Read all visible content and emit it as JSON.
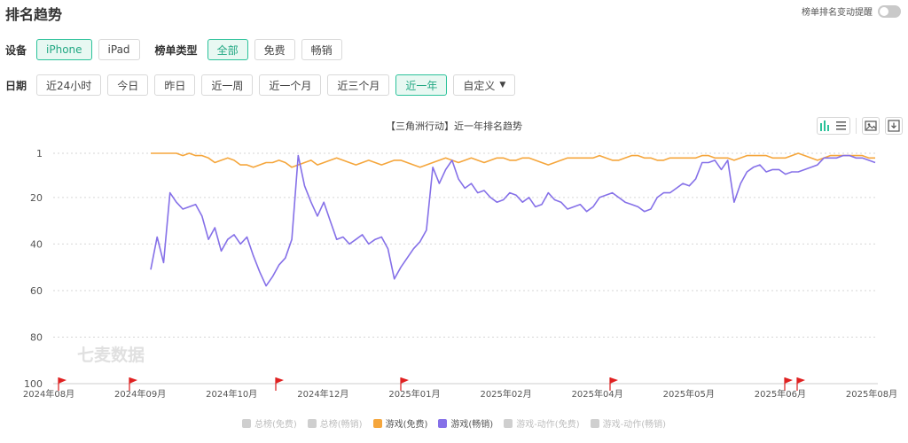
{
  "header": {
    "title": "排名趋势",
    "alert_label": "榜单排名变动提醒"
  },
  "filters": {
    "device_label": "设备",
    "devices": [
      "iPhone",
      "iPad"
    ],
    "chart_type_label": "榜单类型",
    "chart_types": [
      "全部",
      "免费",
      "畅销"
    ],
    "date_label": "日期",
    "dates": [
      "近24小时",
      "今日",
      "昨日",
      "近一周",
      "近一个月",
      "近三个月",
      "近一年"
    ],
    "custom_label": "自定义"
  },
  "chart_data": {
    "type": "line",
    "title": "【三角洲行动】近一年排名趋势",
    "watermark": "七麦数据",
    "x_tick_labels": [
      "2024年08月",
      "2024年09月",
      "2024年10月",
      "2024年12月",
      "2025年01月",
      "2025年02月",
      "2025年04月",
      "2025年05月",
      "2025年06月",
      "2025年08月"
    ],
    "y_tick_labels": [
      "1",
      "20",
      "40",
      "60",
      "80",
      "100"
    ],
    "y_ticks": [
      1,
      20,
      40,
      60,
      80,
      100
    ],
    "ylim": [
      1,
      100
    ],
    "y_inverted": true,
    "grid": "dotted horizontal",
    "event_flags": [
      "2024-08",
      "2024-09",
      "2024-11",
      "2025-01",
      "2025-04",
      "2025-06",
      "2025-06"
    ],
    "legend_position": "bottom",
    "series": [
      {
        "name": "总榜(免费)",
        "color": "#cfcfcf",
        "values": []
      },
      {
        "name": "总榜(畅销)",
        "color": "#cfcfcf",
        "values": []
      },
      {
        "name": "游戏(免费)",
        "color": "#f5a63c",
        "values": [
          1,
          1,
          1,
          1,
          1,
          2,
          1,
          2,
          2,
          3,
          5,
          4,
          3,
          4,
          6,
          6,
          7,
          6,
          5,
          5,
          4,
          5,
          7,
          6,
          5,
          4,
          6,
          5,
          4,
          3,
          4,
          5,
          6,
          5,
          4,
          5,
          6,
          5,
          4,
          4,
          5,
          6,
          7,
          6,
          5,
          4,
          3,
          4,
          5,
          4,
          3,
          4,
          5,
          4,
          3,
          3,
          4,
          4,
          3,
          3,
          4,
          5,
          6,
          5,
          4,
          3,
          3,
          3,
          3,
          3,
          2,
          3,
          4,
          4,
          3,
          2,
          2,
          3,
          3,
          4,
          4,
          3,
          3,
          3,
          3,
          3,
          2,
          2,
          3,
          3,
          3,
          4,
          3,
          2,
          2,
          2,
          2,
          3,
          3,
          3,
          2,
          1,
          2,
          3,
          4,
          3,
          2,
          2,
          2,
          2,
          2,
          2,
          3,
          3
        ]
      },
      {
        "name": "游戏(畅销)",
        "color": "#8570e8",
        "values": [
          51,
          37,
          48,
          18,
          22,
          25,
          24,
          23,
          28,
          38,
          33,
          43,
          38,
          36,
          40,
          37,
          45,
          52,
          58,
          54,
          49,
          46,
          38,
          2,
          15,
          22,
          28,
          22,
          30,
          38,
          37,
          40,
          38,
          36,
          40,
          38,
          37,
          42,
          55,
          50,
          46,
          42,
          39,
          34,
          7,
          14,
          8,
          4,
          12,
          16,
          14,
          18,
          17,
          20,
          22,
          21,
          18,
          19,
          22,
          20,
          24,
          23,
          18,
          21,
          22,
          25,
          24,
          23,
          26,
          24,
          20,
          19,
          18,
          20,
          22,
          23,
          24,
          26,
          25,
          20,
          18,
          18,
          16,
          14,
          15,
          12,
          5,
          5,
          4,
          8,
          4,
          22,
          14,
          9,
          7,
          6,
          9,
          8,
          8,
          10,
          9,
          9,
          8,
          7,
          6,
          3,
          3,
          3,
          2,
          2,
          3,
          3,
          4,
          5
        ]
      },
      {
        "name": "游戏-动作(免费)",
        "color": "#cfcfcf",
        "values": []
      },
      {
        "name": "游戏-动作(畅销)",
        "color": "#cfcfcf",
        "values": []
      }
    ]
  }
}
